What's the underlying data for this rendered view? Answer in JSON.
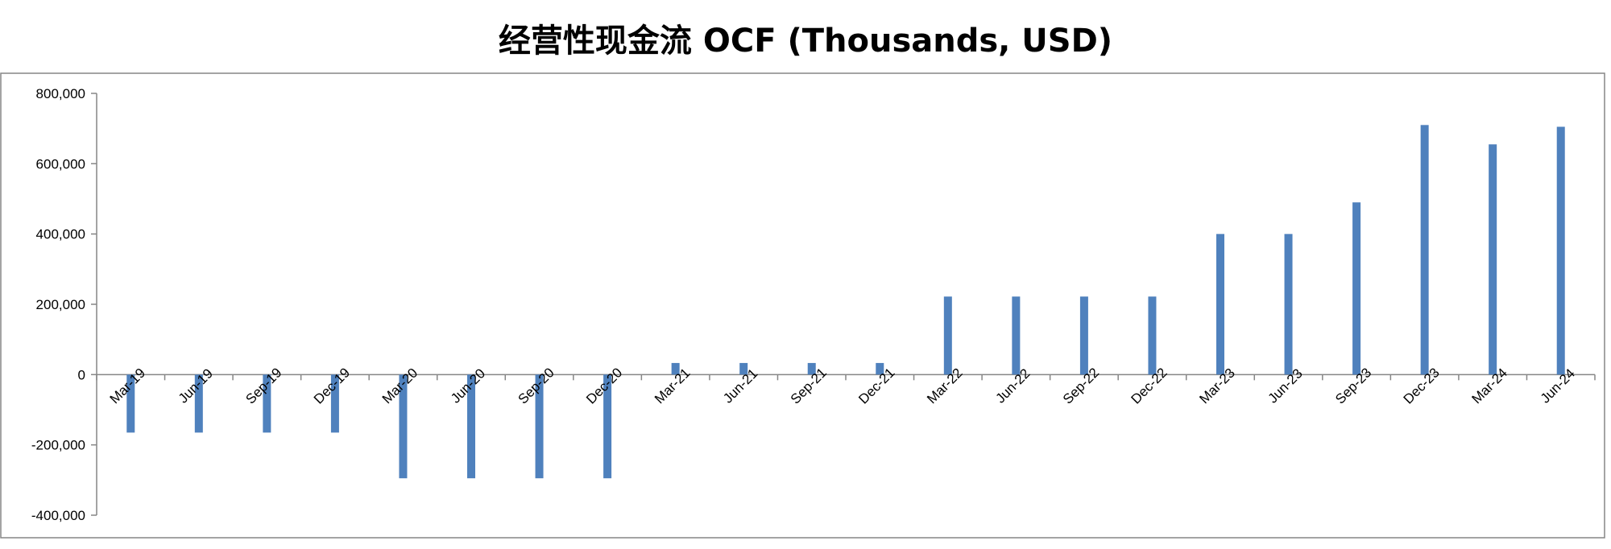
{
  "chart_data": {
    "type": "bar",
    "title": "经营性现金流 OCF (Thousands, USD)",
    "xlabel": "",
    "ylabel": "",
    "categories": [
      "Mar-19",
      "Jun-19",
      "Sep-19",
      "Dec-19",
      "Mar-20",
      "Jun-20",
      "Sep-20",
      "Dec-20",
      "Mar-21",
      "Jun-21",
      "Sep-21",
      "Dec-21",
      "Mar-22",
      "Jun-22",
      "Sep-22",
      "Dec-22",
      "Mar-23",
      "Jun-23",
      "Sep-23",
      "Dec-23",
      "Mar-24",
      "Jun-24"
    ],
    "series": [
      {
        "values": [
          -165000,
          -165000,
          -165000,
          -165000,
          -295000,
          -295000,
          -295000,
          -295000,
          33000,
          33000,
          33000,
          33000,
          222000,
          222000,
          222000,
          222000,
          400000,
          400000,
          490000,
          710000,
          655000,
          705000
        ]
      }
    ],
    "ylim": [
      -400000,
      800000
    ],
    "yticks": [
      800000,
      600000,
      400000,
      200000,
      0,
      -200000,
      -400000
    ],
    "ytick_labels": [
      "800,000",
      "600,000",
      "400,000",
      "200,000",
      "0",
      "-200,000",
      "-400,000"
    ],
    "grid": false,
    "legend": "none",
    "colors": {
      "bar": "#4F81BD",
      "frame": "#868686",
      "axis": "#868686"
    }
  }
}
